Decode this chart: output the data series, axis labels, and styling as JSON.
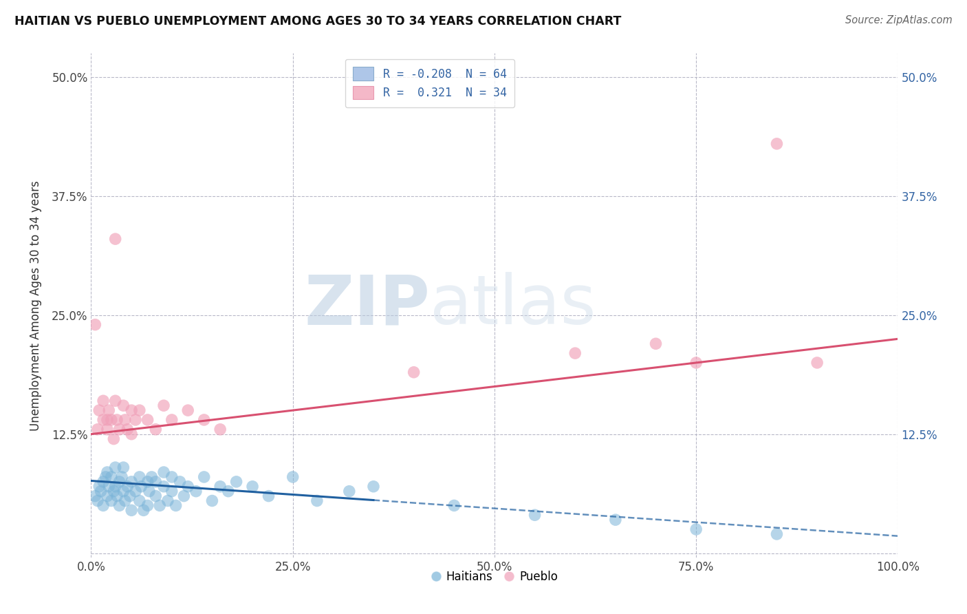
{
  "title": "HAITIAN VS PUEBLO UNEMPLOYMENT AMONG AGES 30 TO 34 YEARS CORRELATION CHART",
  "source_text": "Source: ZipAtlas.com",
  "ylabel": "Unemployment Among Ages 30 to 34 years",
  "xlim": [
    0,
    1.0
  ],
  "ylim": [
    -0.005,
    0.525
  ],
  "xticks": [
    0.0,
    0.25,
    0.5,
    0.75,
    1.0
  ],
  "yticks": [
    0.0,
    0.125,
    0.25,
    0.375,
    0.5
  ],
  "watermark_zip": "ZIP",
  "watermark_atlas": "atlas",
  "haitian_color": "#7ab4d8",
  "pueblo_color": "#f0a0b8",
  "haitian_line_color": "#2060a0",
  "pueblo_line_color": "#d85070",
  "haitian_line_solid_end": 0.35,
  "background_color": "#ffffff",
  "grid_color": "#b8b8c8",
  "haitian_N": 64,
  "pueblo_N": 34,
  "haitian_x": [
    0.005,
    0.008,
    0.01,
    0.012,
    0.015,
    0.015,
    0.018,
    0.02,
    0.02,
    0.022,
    0.025,
    0.025,
    0.028,
    0.03,
    0.03,
    0.032,
    0.035,
    0.035,
    0.038,
    0.04,
    0.04,
    0.042,
    0.045,
    0.048,
    0.05,
    0.05,
    0.055,
    0.06,
    0.06,
    0.062,
    0.065,
    0.07,
    0.07,
    0.072,
    0.075,
    0.08,
    0.08,
    0.085,
    0.09,
    0.09,
    0.095,
    0.1,
    0.1,
    0.105,
    0.11,
    0.115,
    0.12,
    0.13,
    0.14,
    0.15,
    0.16,
    0.17,
    0.18,
    0.2,
    0.22,
    0.25,
    0.28,
    0.32,
    0.35,
    0.45,
    0.55,
    0.65,
    0.75,
    0.85
  ],
  "haitian_y": [
    0.06,
    0.055,
    0.07,
    0.065,
    0.075,
    0.05,
    0.08,
    0.06,
    0.085,
    0.07,
    0.055,
    0.08,
    0.065,
    0.09,
    0.07,
    0.06,
    0.075,
    0.05,
    0.08,
    0.065,
    0.09,
    0.055,
    0.07,
    0.06,
    0.075,
    0.045,
    0.065,
    0.08,
    0.055,
    0.07,
    0.045,
    0.075,
    0.05,
    0.065,
    0.08,
    0.06,
    0.075,
    0.05,
    0.07,
    0.085,
    0.055,
    0.065,
    0.08,
    0.05,
    0.075,
    0.06,
    0.07,
    0.065,
    0.08,
    0.055,
    0.07,
    0.065,
    0.075,
    0.07,
    0.06,
    0.08,
    0.055,
    0.065,
    0.07,
    0.05,
    0.04,
    0.035,
    0.025,
    0.02
  ],
  "pueblo_x": [
    0.005,
    0.008,
    0.03,
    0.01,
    0.015,
    0.015,
    0.02,
    0.02,
    0.022,
    0.025,
    0.028,
    0.03,
    0.032,
    0.035,
    0.04,
    0.042,
    0.045,
    0.05,
    0.05,
    0.055,
    0.06,
    0.07,
    0.08,
    0.09,
    0.1,
    0.12,
    0.14,
    0.16,
    0.4,
    0.6,
    0.7,
    0.75,
    0.85,
    0.9
  ],
  "pueblo_y": [
    0.24,
    0.13,
    0.33,
    0.15,
    0.14,
    0.16,
    0.14,
    0.13,
    0.15,
    0.14,
    0.12,
    0.16,
    0.14,
    0.13,
    0.155,
    0.14,
    0.13,
    0.15,
    0.125,
    0.14,
    0.15,
    0.14,
    0.13,
    0.155,
    0.14,
    0.15,
    0.14,
    0.13,
    0.19,
    0.21,
    0.22,
    0.2,
    0.43,
    0.2
  ],
  "haitian_trend_x0": 0.0,
  "haitian_trend_y0": 0.076,
  "haitian_trend_x1": 1.0,
  "haitian_trend_y1": 0.018,
  "pueblo_trend_x0": 0.0,
  "pueblo_trend_y0": 0.125,
  "pueblo_trend_x1": 1.0,
  "pueblo_trend_y1": 0.225
}
